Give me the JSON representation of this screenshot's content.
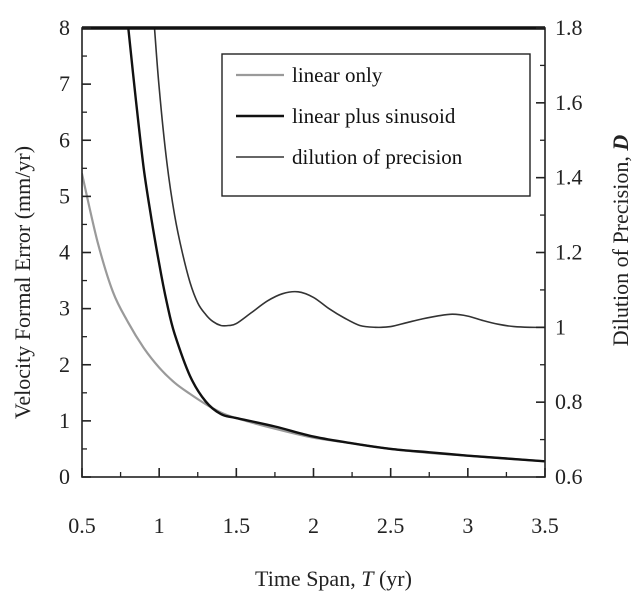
{
  "chart_data": {
    "type": "line",
    "title": "",
    "xlabel": "Time Span, T (yr)",
    "xlabel_parts": [
      "Time Span, ",
      "T",
      " (yr)"
    ],
    "ylabel": "Velocity Formal Error (mm/yr)",
    "y2label": "Dilution of Precision, D",
    "y2label_parts": [
      "Dilution of Precision, ",
      "D"
    ],
    "xlim": [
      0.5,
      3.5
    ],
    "ylim": [
      0,
      8
    ],
    "y2lim": [
      0.6,
      1.8
    ],
    "xticks": [
      "0.5",
      "1",
      "1.5",
      "2",
      "2.5",
      "3",
      "3.5"
    ],
    "yticks": [
      "0",
      "1",
      "2",
      "3",
      "4",
      "5",
      "6",
      "7",
      "8"
    ],
    "y2ticks": [
      "0.6",
      "0.8",
      "1",
      "1.2",
      "1.4",
      "1.6",
      "1.8"
    ],
    "grid": false,
    "legend_position": "top-right",
    "series": [
      {
        "name": "linear only",
        "axis": "left",
        "color": "#9a9a9a",
        "x": [
          0.5,
          0.6,
          0.7,
          0.8,
          0.9,
          1.0,
          1.1,
          1.2,
          1.3,
          1.4,
          1.5,
          1.75,
          2.0,
          2.25,
          2.5,
          2.75,
          3.0,
          3.25,
          3.5
        ],
        "y": [
          5.4,
          4.2,
          3.3,
          2.75,
          2.3,
          1.95,
          1.68,
          1.48,
          1.3,
          1.15,
          1.05,
          0.86,
          0.7,
          0.6,
          0.5,
          0.43,
          0.38,
          0.33,
          0.28
        ]
      },
      {
        "name": "linear plus sinusoid",
        "axis": "left",
        "color": "#111111",
        "x": [
          0.8,
          0.85,
          0.9,
          0.95,
          1.0,
          1.05,
          1.1,
          1.2,
          1.3,
          1.4,
          1.5,
          1.75,
          2.0,
          2.25,
          2.5,
          2.75,
          3.0,
          3.25,
          3.5
        ],
        "y": [
          8.0,
          6.7,
          5.5,
          4.6,
          3.8,
          3.1,
          2.55,
          1.8,
          1.35,
          1.12,
          1.05,
          0.9,
          0.72,
          0.6,
          0.5,
          0.44,
          0.38,
          0.33,
          0.28
        ]
      },
      {
        "name": "dilution of precision",
        "axis": "right",
        "color": "#333333",
        "x": [
          0.97,
          1.0,
          1.05,
          1.1,
          1.15,
          1.2,
          1.25,
          1.3,
          1.35,
          1.4,
          1.45,
          1.5,
          1.6,
          1.7,
          1.8,
          1.9,
          2.0,
          2.1,
          2.2,
          2.3,
          2.4,
          2.5,
          2.6,
          2.7,
          2.8,
          2.9,
          3.0,
          3.1,
          3.2,
          3.3,
          3.4,
          3.5
        ],
        "y": [
          1.8,
          1.64,
          1.44,
          1.3,
          1.2,
          1.12,
          1.065,
          1.035,
          1.015,
          1.005,
          1.005,
          1.01,
          1.04,
          1.07,
          1.09,
          1.095,
          1.08,
          1.05,
          1.025,
          1.005,
          1.0,
          1.002,
          1.012,
          1.022,
          1.03,
          1.035,
          1.03,
          1.018,
          1.008,
          1.002,
          1.0,
          1.0
        ]
      }
    ]
  }
}
